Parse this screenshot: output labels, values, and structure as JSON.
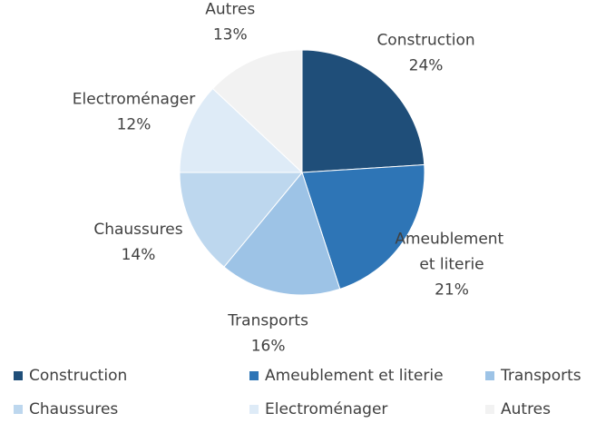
{
  "chart_data": {
    "type": "pie",
    "categories": [
      "Construction",
      "Ameublement et literie",
      "Transports",
      "Chaussures",
      "Electroménager",
      "Autres"
    ],
    "values": [
      24,
      21,
      16,
      14,
      12,
      13
    ],
    "value_labels": [
      "24%",
      "21%",
      "16%",
      "14%",
      "12%",
      "13%"
    ],
    "colors": [
      "#1f4e79",
      "#2e75b6",
      "#9dc3e6",
      "#bdd7ee",
      "#deebf7",
      "#f2f2f2"
    ],
    "legend": "bottom"
  }
}
